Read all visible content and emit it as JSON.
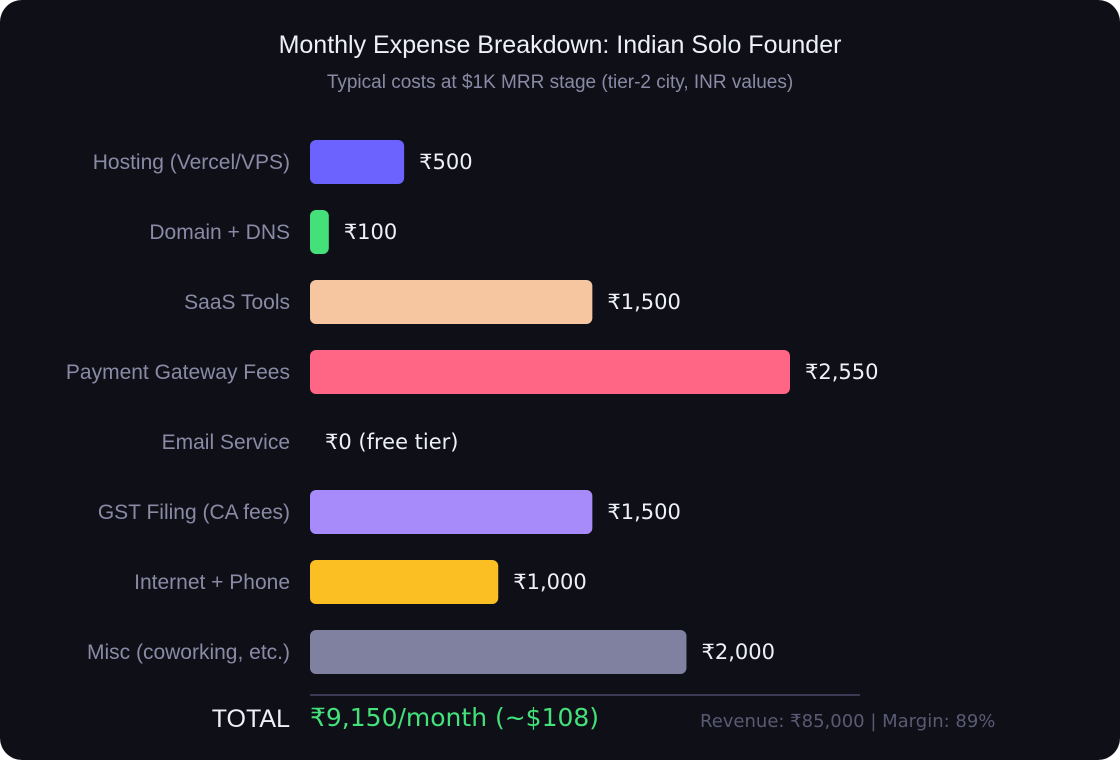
{
  "chart_data": {
    "type": "bar",
    "orientation": "horizontal",
    "title": "Monthly Expense Breakdown: Indian Solo Founder",
    "subtitle": "Typical costs at $1K MRR stage (tier-2 city, INR values)",
    "categories": [
      "Hosting (Vercel/VPS)",
      "Domain + DNS",
      "SaaS Tools",
      "Payment Gateway Fees",
      "Email Service",
      "GST Filing (CA fees)",
      "Internet + Phone",
      "Misc (coworking, etc.)"
    ],
    "values": [
      500,
      100,
      1500,
      2550,
      0,
      1500,
      1000,
      2000
    ],
    "value_labels": [
      "₹500",
      "₹100",
      "₹1,500",
      "₹2,550",
      "₹0 (free tier)",
      "₹1,500",
      "₹1,000",
      "₹2,000"
    ],
    "colors": [
      "#6c63ff",
      "#44e07a",
      "#f6c6a0",
      "#ff6685",
      "#44e07a",
      "#a78bfa",
      "#fbbf24",
      "#8080a0"
    ],
    "grid": false,
    "legend": "none"
  },
  "summary": {
    "total_label": "TOTAL",
    "total_value": "₹9,150/month (~$108)",
    "footer_note": "Revenue: ₹85,000 | Margin: 89%"
  },
  "colors": {
    "background": "#0f0f17",
    "title": "#eef0f8",
    "muted": "#8a8aa6",
    "total": "#44e07a",
    "divider": "#3a3a55"
  }
}
